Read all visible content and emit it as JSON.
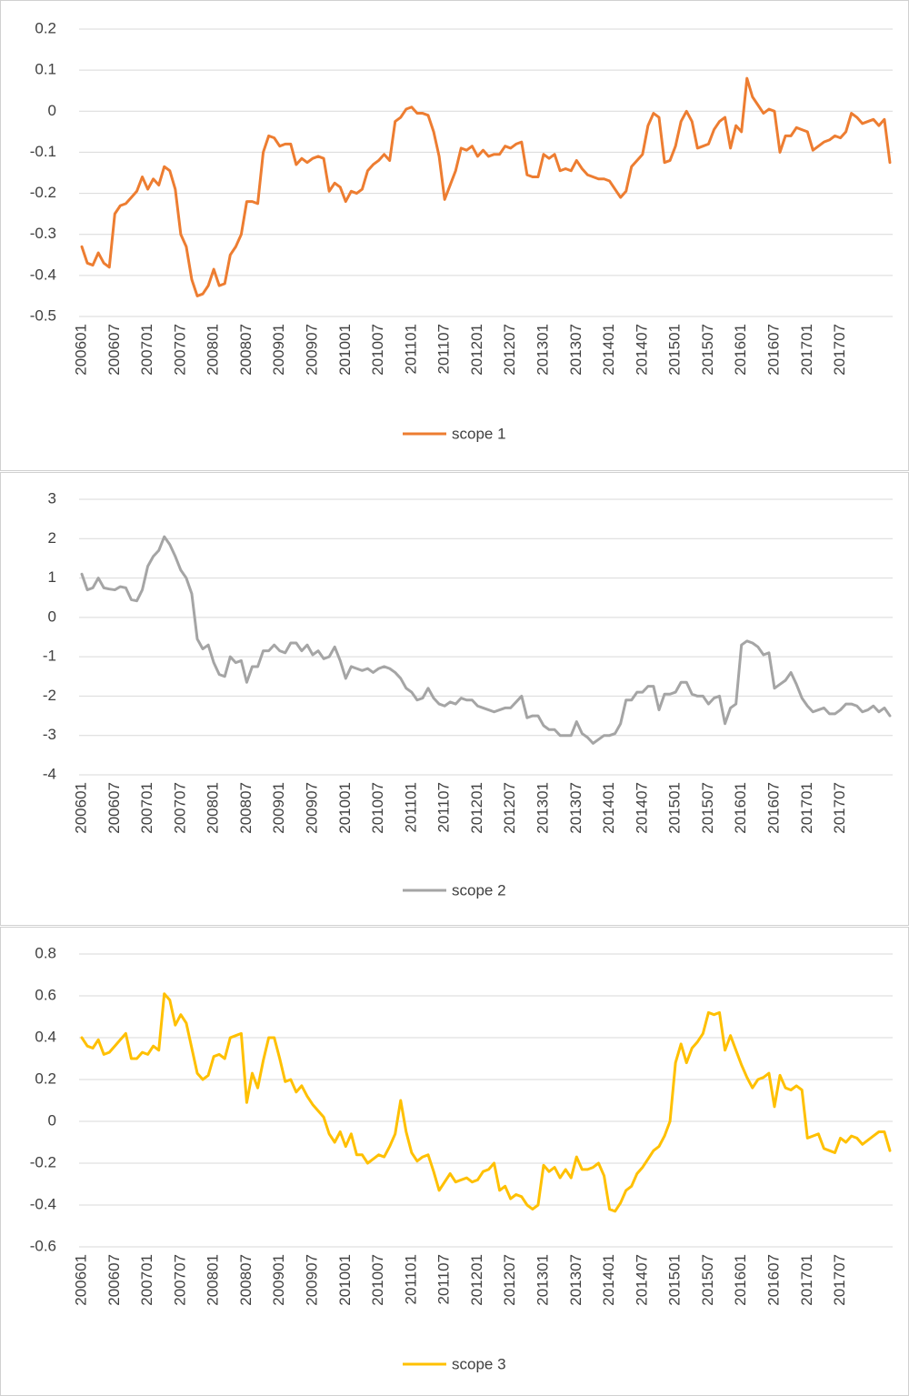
{
  "chart_data": [
    {
      "type": "line",
      "categories": [
        "200601",
        null,
        null,
        null,
        null,
        null,
        "200607",
        null,
        null,
        null,
        null,
        null,
        "200701",
        null,
        null,
        null,
        null,
        null,
        "200707",
        null,
        null,
        null,
        null,
        null,
        "200801",
        null,
        null,
        null,
        null,
        null,
        "200807",
        null,
        null,
        null,
        null,
        null,
        "200901",
        null,
        null,
        null,
        null,
        null,
        "200907",
        null,
        null,
        null,
        null,
        null,
        "201001",
        null,
        null,
        null,
        null,
        null,
        "201007",
        null,
        null,
        null,
        null,
        null,
        "201101",
        null,
        null,
        null,
        null,
        null,
        "201107",
        null,
        null,
        null,
        null,
        null,
        "201201",
        null,
        null,
        null,
        null,
        null,
        "201207",
        null,
        null,
        null,
        null,
        null,
        "201301",
        null,
        null,
        null,
        null,
        null,
        "201307",
        null,
        null,
        null,
        null,
        null,
        "201401",
        null,
        null,
        null,
        null,
        null,
        "201407",
        null,
        null,
        null,
        null,
        null,
        "201501",
        null,
        null,
        null,
        null,
        null,
        "201507",
        null,
        null,
        null,
        null,
        null,
        "201601",
        null,
        null,
        null,
        null,
        null,
        "201607",
        null,
        null,
        null,
        null,
        null,
        "201701",
        null,
        null,
        null,
        null,
        null,
        "201707",
        null,
        null,
        null,
        null,
        null,
        null,
        null,
        null,
        null
      ],
      "series": [
        {
          "name": "scope 1",
          "color": "#ed7d31",
          "values": [
            -0.33,
            -0.37,
            -0.375,
            -0.345,
            -0.37,
            -0.38,
            -0.25,
            -0.23,
            -0.225,
            -0.21,
            -0.195,
            -0.16,
            -0.19,
            -0.165,
            -0.18,
            -0.135,
            -0.145,
            -0.19,
            -0.3,
            -0.33,
            -0.41,
            -0.45,
            -0.445,
            -0.425,
            -0.385,
            -0.425,
            -0.42,
            -0.35,
            -0.33,
            -0.3,
            -0.22,
            -0.22,
            -0.225,
            -0.1,
            -0.06,
            -0.065,
            -0.085,
            -0.08,
            -0.08,
            -0.13,
            -0.115,
            -0.125,
            -0.115,
            -0.11,
            -0.115,
            -0.195,
            -0.175,
            -0.185,
            -0.22,
            -0.195,
            -0.2,
            -0.19,
            -0.145,
            -0.13,
            -0.12,
            -0.105,
            -0.12,
            -0.025,
            -0.015,
            0.005,
            0.01,
            -0.005,
            -0.005,
            -0.01,
            -0.05,
            -0.11,
            -0.215,
            -0.18,
            -0.145,
            -0.09,
            -0.095,
            -0.085,
            -0.11,
            -0.095,
            -0.11,
            -0.105,
            -0.105,
            -0.085,
            -0.09,
            -0.08,
            -0.075,
            -0.155,
            -0.16,
            -0.16,
            -0.105,
            -0.115,
            -0.105,
            -0.145,
            -0.14,
            -0.145,
            -0.12,
            -0.14,
            -0.155,
            -0.16,
            -0.165,
            -0.165,
            -0.17,
            -0.19,
            -0.21,
            -0.195,
            -0.135,
            -0.12,
            -0.105,
            -0.035,
            -0.005,
            -0.015,
            -0.125,
            -0.12,
            -0.085,
            -0.025,
            0,
            -0.025,
            -0.09,
            -0.085,
            -0.08,
            -0.045,
            -0.025,
            -0.015,
            -0.09,
            -0.035,
            -0.05,
            0.08,
            0.035,
            0.015,
            -0.005,
            0.005,
            0,
            -0.1,
            -0.06,
            -0.06,
            -0.04,
            -0.045,
            -0.05,
            -0.095,
            -0.085,
            -0.075,
            -0.07,
            -0.06,
            -0.065,
            -0.05,
            -0.005,
            -0.015,
            -0.03,
            -0.025,
            -0.02,
            -0.035,
            -0.02,
            -0.125
          ]
        }
      ],
      "ylim": [
        -0.5,
        0.2
      ],
      "yticks": [
        -0.5,
        -0.4,
        -0.3,
        -0.2,
        -0.1,
        0,
        0.1,
        0.2
      ],
      "grid": true,
      "legend": "bottom"
    },
    {
      "type": "line",
      "categories": [
        "200601",
        null,
        null,
        null,
        null,
        null,
        "200607",
        null,
        null,
        null,
        null,
        null,
        "200701",
        null,
        null,
        null,
        null,
        null,
        "200707",
        null,
        null,
        null,
        null,
        null,
        "200801",
        null,
        null,
        null,
        null,
        null,
        "200807",
        null,
        null,
        null,
        null,
        null,
        "200901",
        null,
        null,
        null,
        null,
        null,
        "200907",
        null,
        null,
        null,
        null,
        null,
        "201001",
        null,
        null,
        null,
        null,
        null,
        "201007",
        null,
        null,
        null,
        null,
        null,
        "201101",
        null,
        null,
        null,
        null,
        null,
        "201107",
        null,
        null,
        null,
        null,
        null,
        "201201",
        null,
        null,
        null,
        null,
        null,
        "201207",
        null,
        null,
        null,
        null,
        null,
        "201301",
        null,
        null,
        null,
        null,
        null,
        "201307",
        null,
        null,
        null,
        null,
        null,
        "201401",
        null,
        null,
        null,
        null,
        null,
        "201407",
        null,
        null,
        null,
        null,
        null,
        "201501",
        null,
        null,
        null,
        null,
        null,
        "201507",
        null,
        null,
        null,
        null,
        null,
        "201601",
        null,
        null,
        null,
        null,
        null,
        "201607",
        null,
        null,
        null,
        null,
        null,
        "201701",
        null,
        null,
        null,
        null,
        null,
        "201707",
        null,
        null,
        null,
        null,
        null,
        null,
        null,
        null,
        null
      ],
      "series": [
        {
          "name": "scope 2",
          "color": "#a5a5a5",
          "values": [
            1.1,
            0.7,
            0.75,
            1.0,
            0.75,
            0.72,
            0.7,
            0.78,
            0.75,
            0.45,
            0.42,
            0.7,
            1.3,
            1.55,
            1.7,
            2.05,
            1.85,
            1.55,
            1.2,
            1.0,
            0.6,
            -0.55,
            -0.8,
            -0.7,
            -1.15,
            -1.45,
            -1.5,
            -1.0,
            -1.15,
            -1.1,
            -1.65,
            -1.25,
            -1.25,
            -0.85,
            -0.85,
            -0.7,
            -0.85,
            -0.9,
            -0.65,
            -0.65,
            -0.85,
            -0.7,
            -0.95,
            -0.85,
            -1.05,
            -1.0,
            -0.75,
            -1.1,
            -1.55,
            -1.25,
            -1.3,
            -1.35,
            -1.3,
            -1.4,
            -1.3,
            -1.25,
            -1.3,
            -1.4,
            -1.55,
            -1.8,
            -1.9,
            -2.1,
            -2.05,
            -1.8,
            -2.05,
            -2.2,
            -2.25,
            -2.15,
            -2.2,
            -2.05,
            -2.1,
            -2.1,
            -2.25,
            -2.3,
            -2.35,
            -2.4,
            -2.35,
            -2.3,
            -2.3,
            -2.15,
            -2.0,
            -2.55,
            -2.5,
            -2.5,
            -2.75,
            -2.85,
            -2.85,
            -3.0,
            -3.0,
            -3.0,
            -2.65,
            -2.95,
            -3.05,
            -3.2,
            -3.1,
            -3.0,
            -3.0,
            -2.95,
            -2.7,
            -2.1,
            -2.1,
            -1.9,
            -1.9,
            -1.75,
            -1.75,
            -2.35,
            -1.95,
            -1.95,
            -1.9,
            -1.65,
            -1.65,
            -1.95,
            -2.0,
            -2.0,
            -2.2,
            -2.05,
            -2.0,
            -2.7,
            -2.3,
            -2.2,
            -0.7,
            -0.6,
            -0.65,
            -0.75,
            -0.95,
            -0.9,
            -1.8,
            -1.7,
            -1.6,
            -1.4,
            -1.7,
            -2.05,
            -2.25,
            -2.4,
            -2.35,
            -2.3,
            -2.45,
            -2.45,
            -2.35,
            -2.2,
            -2.2,
            -2.25,
            -2.4,
            -2.35,
            -2.25,
            -2.4,
            -2.3,
            -2.5
          ]
        }
      ],
      "ylim": [
        -4,
        3
      ],
      "yticks": [
        -4,
        -3,
        -2,
        -1,
        0,
        1,
        2,
        3
      ],
      "grid": true,
      "legend": "bottom"
    },
    {
      "type": "line",
      "categories": [
        "200601",
        null,
        null,
        null,
        null,
        null,
        "200607",
        null,
        null,
        null,
        null,
        null,
        "200701",
        null,
        null,
        null,
        null,
        null,
        "200707",
        null,
        null,
        null,
        null,
        null,
        "200801",
        null,
        null,
        null,
        null,
        null,
        "200807",
        null,
        null,
        null,
        null,
        null,
        "200901",
        null,
        null,
        null,
        null,
        null,
        "200907",
        null,
        null,
        null,
        null,
        null,
        "201001",
        null,
        null,
        null,
        null,
        null,
        "201007",
        null,
        null,
        null,
        null,
        null,
        "201101",
        null,
        null,
        null,
        null,
        null,
        "201107",
        null,
        null,
        null,
        null,
        null,
        "201201",
        null,
        null,
        null,
        null,
        null,
        "201207",
        null,
        null,
        null,
        null,
        null,
        "201301",
        null,
        null,
        null,
        null,
        null,
        "201307",
        null,
        null,
        null,
        null,
        null,
        "201401",
        null,
        null,
        null,
        null,
        null,
        "201407",
        null,
        null,
        null,
        null,
        null,
        "201501",
        null,
        null,
        null,
        null,
        null,
        "201507",
        null,
        null,
        null,
        null,
        null,
        "201601",
        null,
        null,
        null,
        null,
        null,
        "201607",
        null,
        null,
        null,
        null,
        null,
        "201701",
        null,
        null,
        null,
        null,
        null,
        "201707",
        null,
        null,
        null,
        null,
        null,
        null,
        null,
        null,
        null
      ],
      "series": [
        {
          "name": "scope 3",
          "color": "#ffc000",
          "values": [
            0.4,
            0.36,
            0.35,
            0.39,
            0.32,
            0.33,
            0.36,
            0.39,
            0.42,
            0.3,
            0.3,
            0.33,
            0.32,
            0.36,
            0.34,
            0.61,
            0.58,
            0.46,
            0.51,
            0.47,
            0.35,
            0.23,
            0.2,
            0.22,
            0.31,
            0.32,
            0.3,
            0.4,
            0.41,
            0.42,
            0.09,
            0.23,
            0.16,
            0.29,
            0.4,
            0.4,
            0.3,
            0.19,
            0.2,
            0.14,
            0.17,
            0.12,
            0.08,
            0.05,
            0.02,
            -0.06,
            -0.1,
            -0.05,
            -0.12,
            -0.06,
            -0.16,
            -0.16,
            -0.2,
            -0.18,
            -0.16,
            -0.17,
            -0.12,
            -0.06,
            0.1,
            -0.05,
            -0.15,
            -0.19,
            -0.17,
            -0.16,
            -0.24,
            -0.33,
            -0.29,
            -0.25,
            -0.29,
            -0.28,
            -0.27,
            -0.29,
            -0.28,
            -0.24,
            -0.23,
            -0.2,
            -0.33,
            -0.31,
            -0.37,
            -0.35,
            -0.36,
            -0.4,
            -0.42,
            -0.4,
            -0.21,
            -0.24,
            -0.22,
            -0.27,
            -0.23,
            -0.27,
            -0.17,
            -0.23,
            -0.23,
            -0.22,
            -0.2,
            -0.26,
            -0.42,
            -0.43,
            -0.39,
            -0.33,
            -0.31,
            -0.25,
            -0.22,
            -0.18,
            -0.14,
            -0.12,
            -0.07,
            0,
            0.28,
            0.37,
            0.28,
            0.35,
            0.38,
            0.42,
            0.52,
            0.51,
            0.52,
            0.34,
            0.41,
            0.34,
            0.27,
            0.21,
            0.16,
            0.2,
            0.21,
            0.23,
            0.07,
            0.22,
            0.16,
            0.15,
            0.17,
            0.15,
            -0.08,
            -0.07,
            -0.06,
            -0.13,
            -0.14,
            -0.15,
            -0.08,
            -0.1,
            -0.07,
            -0.08,
            -0.11,
            -0.09,
            -0.07,
            -0.05,
            -0.05,
            -0.14
          ]
        }
      ],
      "ylim": [
        -0.6,
        0.8
      ],
      "yticks": [
        -0.6,
        -0.4,
        -0.2,
        0,
        0.2,
        0.4,
        0.6,
        0.8
      ],
      "grid": true,
      "legend": "bottom"
    }
  ]
}
